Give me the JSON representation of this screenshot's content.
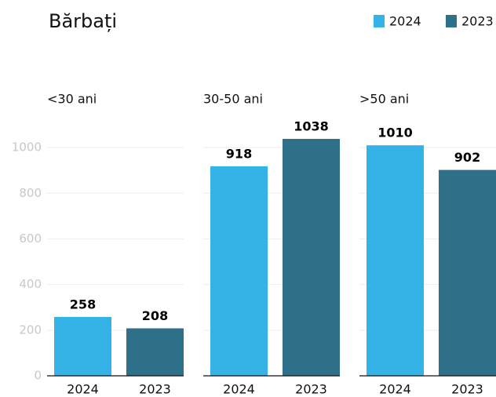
{
  "title": "Bărbați",
  "legend": [
    {
      "name": "2024",
      "color": "#35b3e6"
    },
    {
      "name": "2023",
      "color": "#2e6f8a"
    }
  ],
  "chart_data": [
    {
      "type": "bar",
      "title": "<30 ani",
      "categories": [
        "2024",
        "2023"
      ],
      "values": [
        258,
        208
      ],
      "ylim": [
        0,
        1100
      ],
      "yticks": [
        0,
        200,
        400,
        600,
        800,
        1000
      ],
      "grid": true
    },
    {
      "type": "bar",
      "title": "30-50 ani",
      "categories": [
        "2024",
        "2023"
      ],
      "values": [
        918,
        1038
      ],
      "ylim": [
        0,
        1100
      ],
      "grid": true
    },
    {
      "type": "bar",
      "title": ">50 ani",
      "categories": [
        "2024",
        "2023"
      ],
      "values": [
        1010,
        902
      ],
      "ylim": [
        0,
        1100
      ],
      "grid": true
    }
  ]
}
